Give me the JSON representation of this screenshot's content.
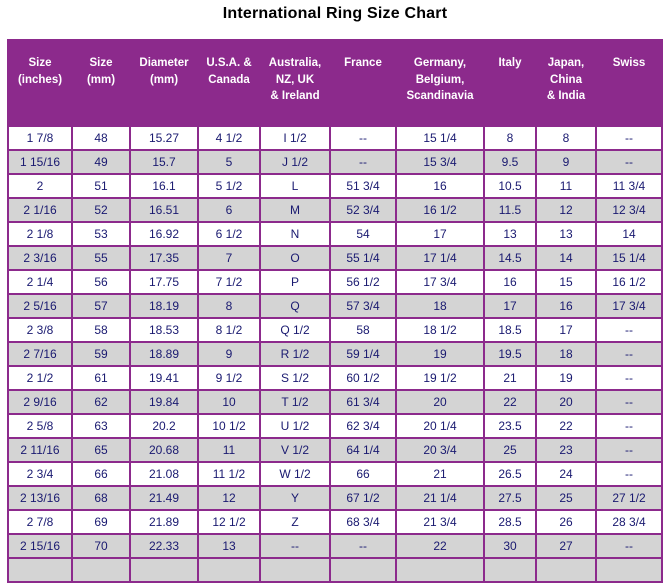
{
  "title": "International Ring Size Chart",
  "colors": {
    "header_bg": "#8C2A8C",
    "header_text": "#FFFFFF",
    "border": "#8C2A8C",
    "row_alt_bg": "#D4D4D4",
    "row_bg": "#FFFFFF",
    "cell_text": "#191970",
    "title_text": "#000000"
  },
  "chart_data": {
    "type": "table",
    "title": "International Ring Size Chart",
    "columns": [
      "Size\n(inches)",
      "Size\n(mm)",
      "Diameter\n(mm)",
      "U.S.A. &\nCanada",
      "Australia,\nNZ, UK\n& Ireland",
      "France",
      "Germany,\nBelgium,\nScandinavia",
      "Italy",
      "Japan,\nChina\n& India",
      "Swiss"
    ],
    "rows": [
      [
        "1 7/8",
        "48",
        "15.27",
        "4 1/2",
        "I 1/2",
        "--",
        "15 1/4",
        "8",
        "8",
        "--"
      ],
      [
        "1 15/16",
        "49",
        "15.7",
        "5",
        "J 1/2",
        "--",
        "15 3/4",
        "9.5",
        "9",
        "--"
      ],
      [
        "2",
        "51",
        "16.1",
        "5 1/2",
        "L",
        "51 3/4",
        "16",
        "10.5",
        "11",
        "11 3/4"
      ],
      [
        "2 1/16",
        "52",
        "16.51",
        "6",
        "M",
        "52 3/4",
        "16 1/2",
        "11.5",
        "12",
        "12 3/4"
      ],
      [
        "2 1/8",
        "53",
        "16.92",
        "6 1/2",
        "N",
        "54",
        "17",
        "13",
        "13",
        "14"
      ],
      [
        "2 3/16",
        "55",
        "17.35",
        "7",
        "O",
        "55 1/4",
        "17 1/4",
        "14.5",
        "14",
        "15 1/4"
      ],
      [
        "2 1/4",
        "56",
        "17.75",
        "7 1/2",
        "P",
        "56 1/2",
        "17 3/4",
        "16",
        "15",
        "16 1/2"
      ],
      [
        "2 5/16",
        "57",
        "18.19",
        "8",
        "Q",
        "57 3/4",
        "18",
        "17",
        "16",
        "17 3/4"
      ],
      [
        "2 3/8",
        "58",
        "18.53",
        "8 1/2",
        "Q 1/2",
        "58",
        "18 1/2",
        "18.5",
        "17",
        "--"
      ],
      [
        "2 7/16",
        "59",
        "18.89",
        "9",
        "R 1/2",
        "59 1/4",
        "19",
        "19.5",
        "18",
        "--"
      ],
      [
        "2 1/2",
        "61",
        "19.41",
        "9 1/2",
        "S 1/2",
        "60 1/2",
        "19 1/2",
        "21",
        "19",
        "--"
      ],
      [
        "2 9/16",
        "62",
        "19.84",
        "10",
        "T 1/2",
        "61 3/4",
        "20",
        "22",
        "20",
        "--"
      ],
      [
        "2 5/8",
        "63",
        "20.2",
        "10 1/2",
        "U 1/2",
        "62 3/4",
        "20 1/4",
        "23.5",
        "22",
        "--"
      ],
      [
        "2 11/16",
        "65",
        "20.68",
        "11",
        "V 1/2",
        "64 1/4",
        "20 3/4",
        "25",
        "23",
        "--"
      ],
      [
        "2 3/4",
        "66",
        "21.08",
        "11 1/2",
        "W 1/2",
        "66",
        "21",
        "26.5",
        "24",
        "--"
      ],
      [
        "2 13/16",
        "68",
        "21.49",
        "12",
        "Y",
        "67 1/2",
        "21 1/4",
        "27.5",
        "25",
        "27 1/2"
      ],
      [
        "2 7/8",
        "69",
        "21.89",
        "12 1/2",
        "Z",
        "68 3/4",
        "21 3/4",
        "28.5",
        "26",
        "28 3/4"
      ],
      [
        "2 15/16",
        "70",
        "22.33",
        "13",
        "--",
        "--",
        "22",
        "30",
        "27",
        "--"
      ]
    ]
  }
}
